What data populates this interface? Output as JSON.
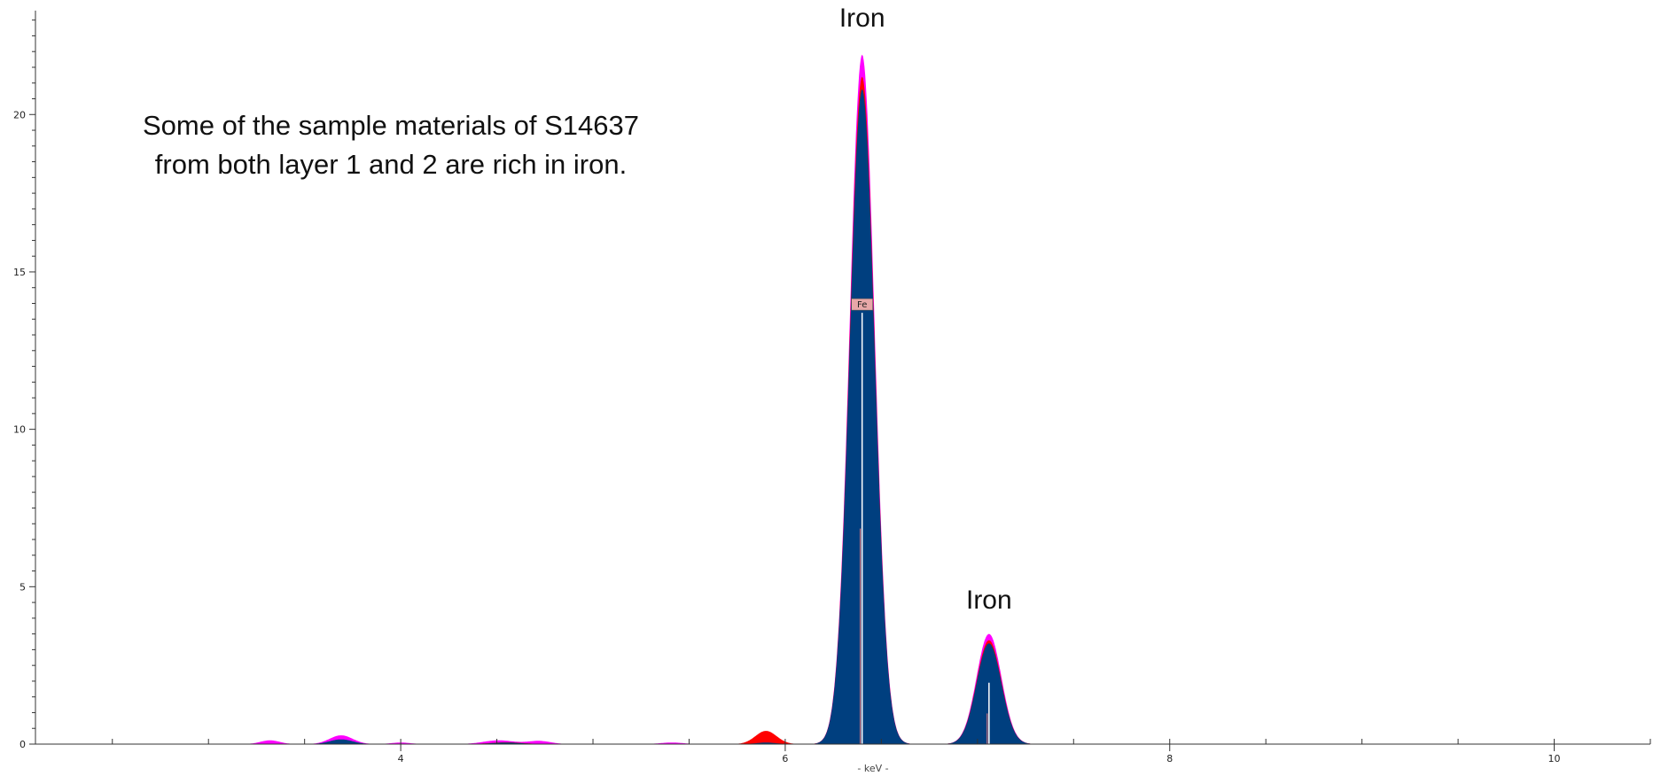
{
  "chart_data": {
    "type": "area",
    "title": "",
    "xlabel": "- keV -",
    "ylabel": "",
    "xlim": [
      2.1,
      10.5
    ],
    "ylim": [
      0,
      23.3
    ],
    "x_ticks": [
      4,
      6,
      8,
      10
    ],
    "y_ticks": [
      0,
      5,
      10,
      15,
      20
    ],
    "grid": false,
    "legend": "none",
    "series": [
      {
        "color": "#ff00ff",
        "peaks": [
          {
            "center": 3.32,
            "height": 0.12,
            "width": 0.05
          },
          {
            "center": 3.69,
            "height": 0.28,
            "width": 0.06
          },
          {
            "center": 4.0,
            "height": 0.05,
            "width": 0.05
          },
          {
            "center": 4.51,
            "height": 0.12,
            "width": 0.08
          },
          {
            "center": 4.72,
            "height": 0.1,
            "width": 0.06
          },
          {
            "center": 5.41,
            "height": 0.05,
            "width": 0.06
          },
          {
            "center": 5.9,
            "height": 0.15,
            "width": 0.05
          },
          {
            "center": 6.4,
            "height": 21.9,
            "width": 0.065
          },
          {
            "center": 7.06,
            "height": 3.5,
            "width": 0.065
          }
        ]
      },
      {
        "color": "#ff0000",
        "peaks": [
          {
            "center": 3.69,
            "height": 0.1,
            "width": 0.06
          },
          {
            "center": 4.55,
            "height": 0.06,
            "width": 0.08
          },
          {
            "center": 5.9,
            "height": 0.42,
            "width": 0.055
          },
          {
            "center": 6.4,
            "height": 21.2,
            "width": 0.065
          },
          {
            "center": 7.06,
            "height": 3.3,
            "width": 0.065
          }
        ]
      },
      {
        "color": "#003f7f",
        "peaks": [
          {
            "center": 3.69,
            "height": 0.15,
            "width": 0.06
          },
          {
            "center": 4.55,
            "height": 0.05,
            "width": 0.08
          },
          {
            "center": 5.9,
            "height": 0.05,
            "width": 0.05
          },
          {
            "center": 6.4,
            "height": 20.8,
            "width": 0.065
          },
          {
            "center": 7.06,
            "height": 3.2,
            "width": 0.065
          }
        ]
      }
    ],
    "markers": [
      {
        "label": "Fe",
        "x": 6.4,
        "line_height": 13.7
      },
      {
        "x": 7.06,
        "line_height": 1.95
      }
    ],
    "annotations": [
      {
        "text": "Iron",
        "x": 6.4,
        "y": 22.8
      },
      {
        "text": "Iron",
        "x": 7.06,
        "y": 4.3
      }
    ],
    "caption": [
      "Some of the sample materials of S14637",
      "from both layer 1 and 2 are rich in iron."
    ]
  }
}
